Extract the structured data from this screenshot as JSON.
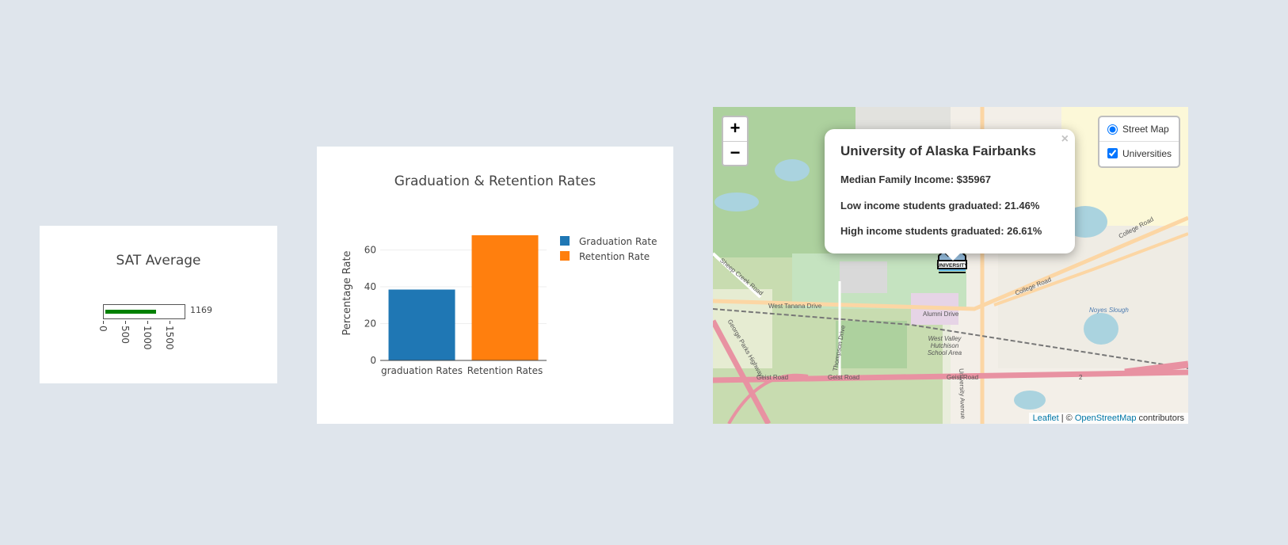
{
  "sat_chart": {
    "title": "SAT Average",
    "value": 1169,
    "value_label": "1169",
    "range": [
      0,
      1600
    ],
    "ticks": [
      "0",
      "500",
      "1000",
      "1500"
    ],
    "bar_color": "#008000"
  },
  "chart_data": {
    "type": "bar",
    "title": "Graduation & Retention Rates",
    "ylabel": "Percentage Rate",
    "xlabel": "",
    "categories": [
      "graduation Rates",
      "Retention Rates"
    ],
    "ylim": [
      0,
      71
    ],
    "yticks": [
      0,
      20,
      40,
      60
    ],
    "grid": true,
    "legend_position": "right",
    "series": [
      {
        "name": "Graduation Rate",
        "color": "#1f77b4",
        "values": [
          38.5,
          null
        ]
      },
      {
        "name": "Retention Rate",
        "color": "#ff7f0e",
        "values": [
          null,
          68
        ]
      }
    ]
  },
  "map": {
    "zoom_in": "+",
    "zoom_out": "−",
    "layers": [
      {
        "label": "Street Map",
        "type": "radio",
        "checked": true
      },
      {
        "label": "Universities",
        "type": "checkbox",
        "checked": true
      }
    ],
    "popup": {
      "close": "×",
      "title": "University of Alaska Fairbanks",
      "lines": [
        "Median Family Income: $35967",
        "Low income students graduated: 21.46%",
        "High income students graduated: 26.61%"
      ]
    },
    "marker_label": "UNIVERSITY",
    "street_labels": [
      "West Tanana Drive",
      "Alumni Drive",
      "College Road",
      "College Road",
      "Geist Road",
      "Geist Road",
      "Geist Road",
      "Thompson Drive",
      "University Avenue",
      "Noyes Slough",
      "West Valley Hutchison School Area",
      "Sheep Creek Road",
      "George Parks Highway",
      "2"
    ],
    "attribution": {
      "leaflet": "Leaflet",
      "sep": " | © ",
      "osm": "OpenStreetMap",
      "tail": " contributors"
    },
    "colors": {
      "primary_road": "#e892a2",
      "secondary_road": "#fcd6a4",
      "park": "#add19e",
      "water": "#aad3df",
      "campus": "#c5e3c0"
    }
  }
}
